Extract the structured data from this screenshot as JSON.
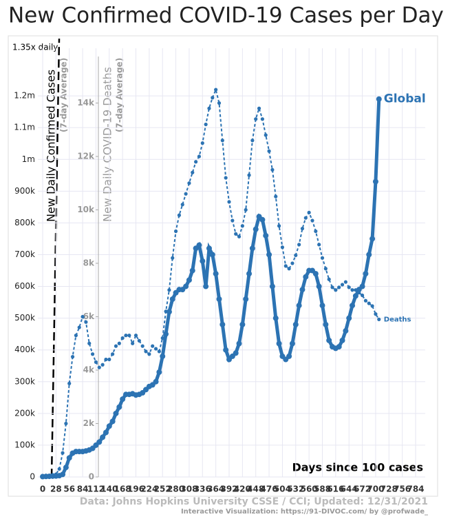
{
  "chart_data": {
    "type": "line",
    "title": "New Confirmed COVID-19 Cases per Day",
    "xlabel": "Days since 100 cases",
    "ylabel": "New Daily Confirmed Cases",
    "ylabel_note": "(7-day Average)",
    "y2label": "New Daily COVID-19 Deaths",
    "y2label_note": "(7-day Average)",
    "annotation": "1.35x daily",
    "source": "Data: Johns Hopkins University CSSE / CCI; Updated: 12/31/2021",
    "credit": "Interactive Visualization: https://91-DIVOC.com/ by @profwade_",
    "grid": true,
    "x": [
      0,
      7,
      14,
      21,
      28,
      35,
      42,
      49,
      56,
      63,
      70,
      77,
      84,
      91,
      98,
      105,
      112,
      119,
      126,
      133,
      140,
      147,
      154,
      161,
      168,
      175,
      182,
      189,
      196,
      203,
      210,
      217,
      224,
      231,
      238,
      245,
      252,
      259,
      266,
      273,
      280,
      287,
      294,
      301,
      308,
      315,
      322,
      329,
      336,
      343,
      350,
      357,
      364,
      371,
      378,
      385,
      392,
      399,
      406,
      413,
      420,
      427,
      434,
      441,
      448,
      455,
      462,
      469,
      476,
      483,
      490,
      497,
      504,
      511,
      518,
      525,
      532,
      539,
      546,
      553,
      560,
      567,
      574,
      581,
      588,
      595,
      602,
      609,
      616,
      623,
      630,
      637,
      644,
      651,
      658,
      665,
      672,
      679,
      686,
      693,
      700,
      707
    ],
    "series": [
      {
        "name": "Global",
        "color": "#2c73b3",
        "axis": "y",
        "values": [
          1000,
          1500,
          2000,
          2500,
          3000,
          4000,
          8000,
          30000,
          60000,
          75000,
          80000,
          80000,
          80000,
          82000,
          85000,
          90000,
          100000,
          110000,
          125000,
          140000,
          160000,
          175000,
          200000,
          220000,
          245000,
          260000,
          260000,
          262000,
          258000,
          260000,
          265000,
          275000,
          285000,
          290000,
          300000,
          330000,
          380000,
          450000,
          520000,
          560000,
          580000,
          590000,
          590000,
          600000,
          620000,
          650000,
          720000,
          730000,
          680000,
          600000,
          720000,
          700000,
          640000,
          560000,
          480000,
          400000,
          370000,
          380000,
          390000,
          420000,
          480000,
          560000,
          640000,
          720000,
          780000,
          820000,
          810000,
          760000,
          700000,
          600000,
          500000,
          420000,
          380000,
          370000,
          380000,
          420000,
          480000,
          540000,
          590000,
          630000,
          650000,
          650000,
          640000,
          600000,
          540000,
          480000,
          430000,
          410000,
          405000,
          410000,
          430000,
          460000,
          500000,
          540000,
          570000,
          590000,
          600000,
          640000,
          700000,
          750000,
          930000,
          1190000
        ]
      },
      {
        "name": "Deaths",
        "color": "#2c73b3",
        "axis": "y2",
        "values": [
          50,
          55,
          60,
          80,
          100,
          300,
          900,
          2000,
          3500,
          4500,
          5300,
          5600,
          6000,
          5800,
          5000,
          4600,
          4300,
          4100,
          4200,
          4400,
          4400,
          4600,
          4900,
          5000,
          5200,
          5300,
          5300,
          5000,
          5300,
          5100,
          4900,
          4700,
          4600,
          4900,
          4800,
          4700,
          5200,
          6200,
          7000,
          8200,
          9200,
          9800,
          10200,
          10600,
          11000,
          11400,
          11800,
          12000,
          12500,
          13200,
          13800,
          14200,
          14500,
          14000,
          12600,
          11200,
          10300,
          9600,
          9100,
          9000,
          9400,
          10000,
          11300,
          12600,
          13400,
          13800,
          13400,
          12800,
          12200,
          11500,
          10500,
          9400,
          8600,
          7900,
          7800,
          8000,
          8300,
          8700,
          9300,
          9700,
          9900,
          9600,
          9200,
          8700,
          8200,
          7800,
          7400,
          7100,
          7000,
          7100,
          7200,
          7300,
          7100,
          7000,
          7000,
          6900,
          6800,
          6600,
          6500,
          6400,
          6100,
          5900
        ]
      }
    ],
    "xlim": [
      0,
      784
    ],
    "xticks": [
      0,
      28,
      56,
      84,
      112,
      140,
      168,
      196,
      224,
      252,
      280,
      308,
      336,
      364,
      392,
      420,
      448,
      476,
      504,
      532,
      560,
      588,
      616,
      644,
      672,
      700,
      728,
      756,
      784
    ],
    "ylim": [
      0,
      1350000
    ],
    "yticks": [
      0,
      {
        "value": 100000,
        "label": "100k"
      },
      {
        "value": 200000,
        "label": "200k"
      },
      {
        "value": 300000,
        "label": "300k"
      },
      {
        "value": 400000,
        "label": "400k"
      },
      {
        "value": 500000,
        "label": "500k"
      },
      {
        "value": 600000,
        "label": "600k"
      },
      {
        "value": 700000,
        "label": "700k"
      },
      {
        "value": 800000,
        "label": "800k"
      },
      {
        "value": 900000,
        "label": "900k"
      },
      {
        "value": 1000000,
        "label": "1m"
      },
      {
        "value": 1100000,
        "label": "1.1m"
      },
      {
        "value": 1200000,
        "label": "1.2m"
      }
    ],
    "y2lim": [
      0,
      16000
    ],
    "y2ticks": [
      0,
      {
        "value": 2000,
        "label": "2k"
      },
      {
        "value": 4000,
        "label": "4k"
      },
      {
        "value": 6000,
        "label": "6k"
      },
      {
        "value": 8000,
        "label": "8k"
      },
      {
        "value": 10000,
        "label": "10k"
      },
      {
        "value": 12000,
        "label": "12k"
      },
      {
        "value": 14000,
        "label": "14k"
      }
    ]
  }
}
